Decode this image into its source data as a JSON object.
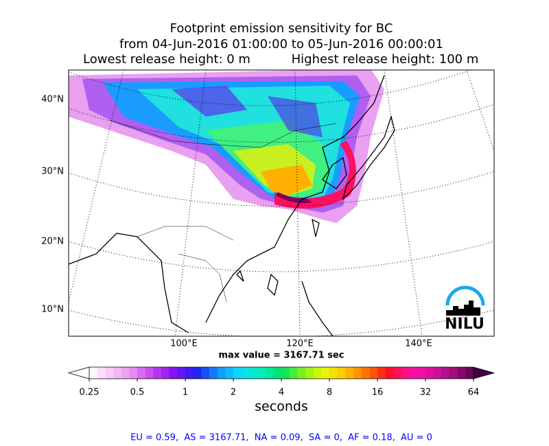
{
  "title": {
    "line1": "Footprint emission sensitivity for BC",
    "line2": "from 04-Jun-2016 01:00:00 to 05-Jun-2016 00:00:01",
    "lowest": "Lowest release height: 0 m",
    "highest": "Highest release height: 100 m"
  },
  "map": {
    "lat_labels": [
      "40°N",
      "30°N",
      "20°N",
      "10°N"
    ],
    "lon_labels": [
      "100°E",
      "120°E",
      "140°E"
    ],
    "max_value": "max value = 3167.71 sec",
    "logo": "NILU"
  },
  "colorbar": {
    "ticks": [
      0.25,
      0.5,
      1,
      2,
      4,
      8,
      16,
      32,
      64
    ],
    "label": "seconds",
    "log": true
  },
  "footer": "EU = 0.59,  AS = 3167.71,  NA = 0.09,  SA = 0,  AF = 0.18,  AU = 0"
}
